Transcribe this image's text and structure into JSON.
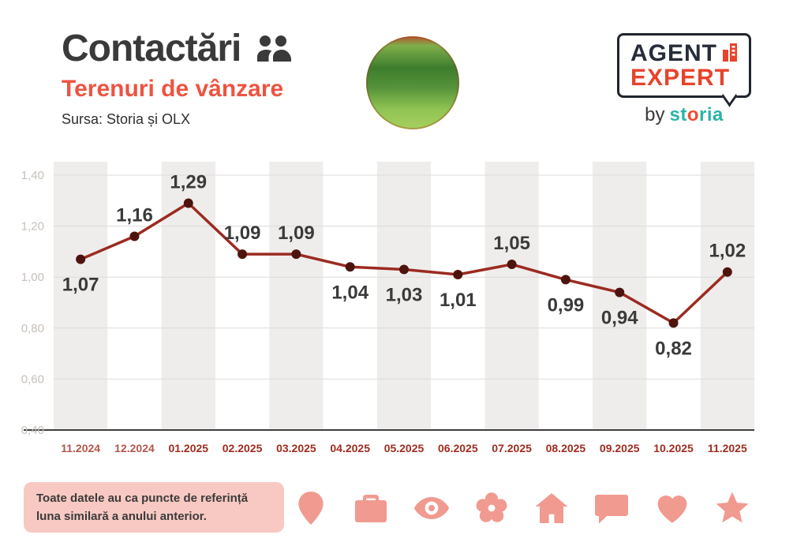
{
  "header": {
    "title": "Contactări",
    "subtitle": "Terenuri de vânzare",
    "source": "Sursa: Storia și OLX",
    "logo": {
      "line1": "AGENT",
      "line2": "EXPERT",
      "by": "by",
      "brand_pre": "st",
      "brand_o": "o",
      "brand_post": "ria"
    }
  },
  "chart_data": {
    "type": "line",
    "title": "Contactări — Terenuri de vânzare",
    "categories": [
      "11.2024",
      "12.2024",
      "01.2025",
      "02.2025",
      "03.2025",
      "04.2025",
      "05.2025",
      "06.2025",
      "07.2025",
      "08.2025",
      "09.2025",
      "10.2025",
      "11.2025"
    ],
    "values": [
      1.07,
      1.16,
      1.29,
      1.09,
      1.09,
      1.04,
      1.03,
      1.01,
      1.05,
      0.99,
      0.94,
      0.82,
      1.02
    ],
    "point_labels": [
      "1,07",
      "1,16",
      "1,29",
      "1,09",
      "1,09",
      "1,04",
      "1,03",
      "1,01",
      "1,05",
      "0,99",
      "0,94",
      "0,82",
      "1,02"
    ],
    "label_pos": [
      "below",
      "above",
      "above",
      "above",
      "above",
      "below",
      "below",
      "below",
      "above",
      "below",
      "below",
      "below",
      "above"
    ],
    "ylim": [
      0.4,
      1.4
    ],
    "yticks": [
      0.4,
      0.6,
      0.8,
      1.0,
      1.2,
      1.4
    ],
    "ytick_labels": [
      "0,40",
      "0,60",
      "0,80",
      "1,00",
      "1,20",
      "1,40"
    ],
    "grid": true,
    "legend": "none",
    "colors": {
      "line": "#9b2b21",
      "dot": "#4d140e",
      "band": "#efedeb",
      "grid": "#dcdcdc",
      "axis": "#3f3f3f",
      "ytick": "#c6c0ba",
      "xlabel": "#a02c20",
      "xlabel_muted": "#b2564c",
      "value_label": "#3a3a3a"
    }
  },
  "footer": {
    "note_line1": "Toate datele au ca puncte de referință",
    "note_line2": "luna similară a anului anterior.",
    "icons": [
      "pin-icon",
      "briefcase-icon",
      "eye-icon",
      "flower-icon",
      "home-icon",
      "chat-icon",
      "heart-icon",
      "star-icon"
    ]
  }
}
